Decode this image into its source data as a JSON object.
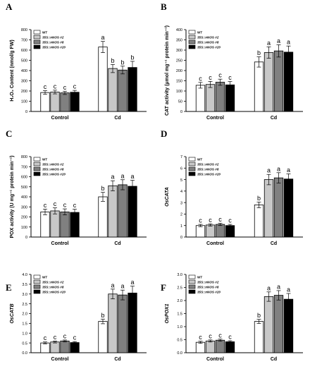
{
  "panel_letters": [
    "A",
    "B",
    "C",
    "D",
    "E",
    "F"
  ],
  "legend": {
    "entries": [
      "WT",
      "35S::nNOS #2",
      "35S::nNOS #8",
      "35S::nNOS #20"
    ],
    "colors": [
      "#ffffff",
      "#c8c8c8",
      "#808080",
      "#000000"
    ]
  },
  "chart_data": [
    {
      "type": "bar",
      "panel": "A",
      "ylabel": "H₂O₂ Content (nmol/g FW)",
      "categories": [
        "Control",
        "Cd"
      ],
      "ylim": [
        0,
        800
      ],
      "yticks": [
        0,
        100,
        200,
        300,
        400,
        500,
        600,
        700,
        800
      ],
      "series": [
        {
          "name": "WT",
          "values": [
            185,
            630
          ],
          "errors": [
            18,
            55
          ],
          "letters": [
            "c",
            "a"
          ]
        },
        {
          "name": "35S::nNOS #2",
          "values": [
            190,
            420
          ],
          "errors": [
            18,
            40
          ],
          "letters": [
            "c",
            "b"
          ]
        },
        {
          "name": "35S::nNOS #8",
          "values": [
            182,
            405
          ],
          "errors": [
            16,
            38
          ],
          "letters": [
            "c",
            "b"
          ]
        },
        {
          "name": "35S::nNOS #20",
          "values": [
            188,
            430
          ],
          "errors": [
            18,
            60
          ],
          "letters": [
            "c",
            "b"
          ]
        }
      ]
    },
    {
      "type": "bar",
      "panel": "B",
      "ylabel": "CAT activity (μmol mg⁻¹ protein min⁻¹)",
      "categories": [
        "Control",
        "Cd"
      ],
      "ylim": [
        0,
        400
      ],
      "yticks": [
        0,
        50,
        100,
        150,
        200,
        250,
        300,
        350,
        400
      ],
      "series": [
        {
          "name": "WT",
          "values": [
            128,
            242
          ],
          "errors": [
            14,
            25
          ],
          "letters": [
            "c",
            "b"
          ]
        },
        {
          "name": "35S::nNOS #2",
          "values": [
            132,
            288
          ],
          "errors": [
            15,
            28
          ],
          "letters": [
            "c",
            "a"
          ]
        },
        {
          "name": "35S::nNOS #8",
          "values": [
            143,
            296
          ],
          "errors": [
            15,
            30
          ],
          "letters": [
            "c",
            "a"
          ]
        },
        {
          "name": "35S::nNOS #20",
          "values": [
            130,
            290
          ],
          "errors": [
            16,
            30
          ],
          "letters": [
            "c",
            "a"
          ]
        }
      ]
    },
    {
      "type": "bar",
      "panel": "C",
      "ylabel": "POX activity (U mg⁻¹ protein min⁻¹)",
      "categories": [
        "Control",
        "Cd"
      ],
      "ylim": [
        0,
        800
      ],
      "yticks": [
        0,
        100,
        200,
        300,
        400,
        500,
        600,
        700,
        800
      ],
      "series": [
        {
          "name": "WT",
          "values": [
            250,
            400
          ],
          "errors": [
            28,
            45
          ],
          "letters": [
            "c",
            "b"
          ]
        },
        {
          "name": "35S::nNOS #2",
          "values": [
            260,
            510
          ],
          "errors": [
            30,
            50
          ],
          "letters": [
            "c",
            "a"
          ]
        },
        {
          "name": "35S::nNOS #8",
          "values": [
            250,
            520
          ],
          "errors": [
            30,
            50
          ],
          "letters": [
            "c",
            "a"
          ]
        },
        {
          "name": "35S::nNOS #20",
          "values": [
            245,
            505
          ],
          "errors": [
            32,
            60
          ],
          "letters": [
            "c",
            "a"
          ]
        }
      ]
    },
    {
      "type": "bar",
      "panel": "D",
      "ylabel": "OsCATA",
      "categories": [
        "Control",
        "Cd"
      ],
      "ylim": [
        0,
        7
      ],
      "yticks": [
        0,
        1,
        2,
        3,
        4,
        5,
        6,
        7
      ],
      "series": [
        {
          "name": "WT",
          "values": [
            1.0,
            2.8
          ],
          "errors": [
            0.1,
            0.25
          ],
          "letters": [
            "c",
            "b"
          ]
        },
        {
          "name": "35S::nNOS #2",
          "values": [
            1.05,
            5.0
          ],
          "errors": [
            0.1,
            0.45
          ],
          "letters": [
            "c",
            "a"
          ]
        },
        {
          "name": "35S::nNOS #8",
          "values": [
            1.1,
            5.15
          ],
          "errors": [
            0.1,
            0.45
          ],
          "letters": [
            "c",
            "a"
          ]
        },
        {
          "name": "35S::nNOS #20",
          "values": [
            1.0,
            5.05
          ],
          "errors": [
            0.1,
            0.45
          ],
          "letters": [
            "c",
            "a"
          ]
        }
      ]
    },
    {
      "type": "bar",
      "panel": "E",
      "ylabel": "OsCATB",
      "categories": [
        "Control",
        "Cd"
      ],
      "ylim": [
        0,
        4.0
      ],
      "yticks": [
        0,
        0.5,
        1.0,
        1.5,
        2.0,
        2.5,
        3.0,
        3.5,
        4.0
      ],
      "series": [
        {
          "name": "WT",
          "values": [
            0.5,
            1.6
          ],
          "errors": [
            0.05,
            0.12
          ],
          "letters": [
            "c",
            "b"
          ]
        },
        {
          "name": "35S::nNOS #2",
          "values": [
            0.55,
            3.0
          ],
          "errors": [
            0.05,
            0.25
          ],
          "letters": [
            "c",
            "a"
          ]
        },
        {
          "name": "35S::nNOS #8",
          "values": [
            0.6,
            2.95
          ],
          "errors": [
            0.05,
            0.25
          ],
          "letters": [
            "c",
            "a"
          ]
        },
        {
          "name": "35S::nNOS #20",
          "values": [
            0.52,
            3.05
          ],
          "errors": [
            0.05,
            0.35
          ],
          "letters": [
            "c",
            "a"
          ]
        }
      ]
    },
    {
      "type": "bar",
      "panel": "F",
      "ylabel": "OsPOX1",
      "categories": [
        "Control",
        "Cd"
      ],
      "ylim": [
        0,
        3.0
      ],
      "yticks": [
        0,
        0.5,
        1.0,
        1.5,
        2.0,
        2.5,
        3.0
      ],
      "series": [
        {
          "name": "WT",
          "values": [
            0.4,
            1.2
          ],
          "errors": [
            0.04,
            0.08
          ],
          "letters": [
            "c",
            "b"
          ]
        },
        {
          "name": "35S::nNOS #2",
          "values": [
            0.45,
            2.15
          ],
          "errors": [
            0.04,
            0.18
          ],
          "letters": [
            "c",
            "a"
          ]
        },
        {
          "name": "35S::nNOS #8",
          "values": [
            0.48,
            2.2
          ],
          "errors": [
            0.04,
            0.18
          ],
          "letters": [
            "c",
            "a"
          ]
        },
        {
          "name": "35S::nNOS #20",
          "values": [
            0.42,
            2.05
          ],
          "errors": [
            0.04,
            0.22
          ],
          "letters": [
            "c",
            "a"
          ]
        }
      ]
    }
  ]
}
